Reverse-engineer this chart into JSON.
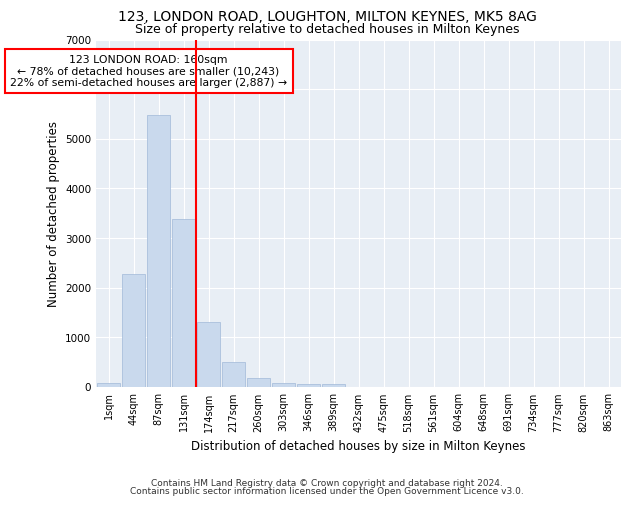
{
  "title": "123, LONDON ROAD, LOUGHTON, MILTON KEYNES, MK5 8AG",
  "subtitle": "Size of property relative to detached houses in Milton Keynes",
  "xlabel": "Distribution of detached houses by size in Milton Keynes",
  "ylabel": "Number of detached properties",
  "footer_line1": "Contains HM Land Registry data © Crown copyright and database right 2024.",
  "footer_line2": "Contains public sector information licensed under the Open Government Licence v3.0.",
  "bin_labels": [
    "1sqm",
    "44sqm",
    "87sqm",
    "131sqm",
    "174sqm",
    "217sqm",
    "260sqm",
    "303sqm",
    "346sqm",
    "389sqm",
    "432sqm",
    "475sqm",
    "518sqm",
    "561sqm",
    "604sqm",
    "648sqm",
    "691sqm",
    "734sqm",
    "777sqm",
    "820sqm",
    "863sqm"
  ],
  "bar_values": [
    75,
    2280,
    5480,
    3380,
    1300,
    500,
    175,
    90,
    65,
    55,
    0,
    0,
    0,
    0,
    0,
    0,
    0,
    0,
    0,
    0,
    0
  ],
  "bar_color": "#c9d9ed",
  "bar_edgecolor": "#a0b8d8",
  "vline_x": 3.5,
  "vline_color": "red",
  "annotation_text": "123 LONDON ROAD: 160sqm\n← 78% of detached houses are smaller (10,243)\n22% of semi-detached houses are larger (2,887) →",
  "annotation_box_color": "white",
  "annotation_box_edgecolor": "red",
  "ylim": [
    0,
    7000
  ],
  "yticks": [
    0,
    1000,
    2000,
    3000,
    4000,
    5000,
    6000,
    7000
  ],
  "background_color": "#e8eef5",
  "plot_background_color": "#e8eef5",
  "grid_color": "white",
  "title_fontsize": 10,
  "subtitle_fontsize": 9,
  "axis_label_fontsize": 8.5,
  "tick_fontsize": 7,
  "footer_fontsize": 6.5,
  "annotation_fontsize": 7.8
}
